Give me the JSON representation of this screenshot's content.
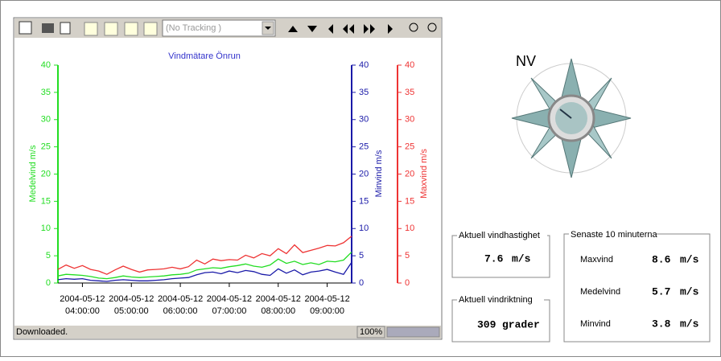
{
  "toolbar": {
    "tracking": "(No Tracking )"
  },
  "chart_data": {
    "type": "line",
    "title": "Vindmätare Önrun",
    "x": [
      "2004-05-12 03:30:00",
      "2004-05-12 03:40:00",
      "2004-05-12 03:50:00",
      "2004-05-12 04:00:00",
      "2004-05-12 04:10:00",
      "2004-05-12 04:20:00",
      "2004-05-12 04:30:00",
      "2004-05-12 04:40:00",
      "2004-05-12 04:50:00",
      "2004-05-12 05:00:00",
      "2004-05-12 05:10:00",
      "2004-05-12 05:20:00",
      "2004-05-12 05:30:00",
      "2004-05-12 05:40:00",
      "2004-05-12 05:50:00",
      "2004-05-12 06:00:00",
      "2004-05-12 06:10:00",
      "2004-05-12 06:20:00",
      "2004-05-12 06:30:00",
      "2004-05-12 06:40:00",
      "2004-05-12 06:50:00",
      "2004-05-12 07:00:00",
      "2004-05-12 07:10:00",
      "2004-05-12 07:20:00",
      "2004-05-12 07:30:00",
      "2004-05-12 07:40:00",
      "2004-05-12 07:50:00",
      "2004-05-12 08:00:00",
      "2004-05-12 08:10:00",
      "2004-05-12 08:20:00",
      "2004-05-12 08:30:00",
      "2004-05-12 08:40:00",
      "2004-05-12 08:50:00",
      "2004-05-12 09:00:00",
      "2004-05-12 09:10:00",
      "2004-05-12 09:20:00",
      "2004-05-12 09:30:00"
    ],
    "xlim": [
      "2004-05-12 03:30:00",
      "2004-05-12 09:30:00"
    ],
    "xticks": [
      {
        "value": "2004-05-12 04:00:00",
        "label": "2004-05-12 04:00:00"
      },
      {
        "value": "2004-05-12 05:00:00",
        "label": "2004-05-12 05:00:00"
      },
      {
        "value": "2004-05-12 06:00:00",
        "label": "2004-05-12 06:00:00"
      },
      {
        "value": "2004-05-12 07:00:00",
        "label": "2004-05-12 07:00:00"
      },
      {
        "value": "2004-05-12 08:00:00",
        "label": "2004-05-12 08:00:00"
      },
      {
        "value": "2004-05-12 09:00:00",
        "label": "2004-05-12 09:00:00"
      }
    ],
    "ylabel": "Medelvind m/s",
    "y2label": "Minvind m/s",
    "y3label": "Maxvind m/s",
    "ylim": [
      0,
      40
    ],
    "yticks": [
      0,
      5,
      10,
      15,
      20,
      25,
      30,
      35,
      40
    ],
    "y2lim": [
      0,
      40
    ],
    "y2ticks": [
      0,
      5,
      10,
      15,
      20,
      25,
      30,
      35,
      40
    ],
    "y3lim": [
      0,
      40
    ],
    "y3ticks": [
      0,
      5,
      10,
      15,
      20,
      25,
      30,
      35,
      40
    ],
    "series": [
      {
        "name": "Medelvind",
        "color": "#22dd22",
        "axis": "y",
        "values": [
          1.3,
          1.6,
          1.5,
          1.4,
          1.2,
          0.9,
          0.8,
          1.0,
          1.3,
          1.1,
          1.0,
          1.1,
          1.2,
          1.3,
          1.5,
          1.6,
          1.8,
          2.4,
          2.6,
          2.8,
          2.7,
          3.0,
          3.2,
          3.5,
          3.1,
          2.9,
          3.3,
          4.4,
          3.6,
          4.0,
          3.4,
          3.7,
          3.4,
          4.0,
          3.9,
          4.2,
          5.7
        ]
      },
      {
        "name": "Minvind",
        "color": "#1a1aa8",
        "axis": "y2",
        "values": [
          0.6,
          0.8,
          0.7,
          0.8,
          0.5,
          0.4,
          0.3,
          0.5,
          0.6,
          0.5,
          0.4,
          0.4,
          0.5,
          0.6,
          0.8,
          0.9,
          1.0,
          1.5,
          1.9,
          2.0,
          1.7,
          2.2,
          1.9,
          2.3,
          2.1,
          1.6,
          1.4,
          2.6,
          1.8,
          2.4,
          1.5,
          2.0,
          2.2,
          2.5,
          2.0,
          1.6,
          3.8
        ]
      },
      {
        "name": "Maxvind",
        "color": "#ee3333",
        "axis": "y3",
        "values": [
          2.5,
          3.3,
          2.7,
          3.2,
          2.5,
          2.2,
          1.6,
          2.4,
          3.1,
          2.5,
          2.0,
          2.4,
          2.5,
          2.6,
          2.9,
          2.6,
          3.0,
          4.2,
          3.5,
          4.4,
          4.1,
          4.3,
          4.2,
          5.1,
          4.6,
          5.4,
          5.0,
          6.3,
          5.4,
          7.0,
          5.6,
          6.0,
          6.4,
          6.9,
          6.8,
          7.4,
          8.6
        ]
      }
    ]
  },
  "status": {
    "message": "Downloaded.",
    "zoom": "100%"
  },
  "compass": {
    "direction": "NV"
  },
  "speed": {
    "title": "Aktuell vindhastighet",
    "value": "7.6",
    "unit": "m/s"
  },
  "direction": {
    "title": "Aktuell vindriktning",
    "value": "309",
    "unit": "grader"
  },
  "last10": {
    "title": "Senaste 10 minuterna",
    "rows": [
      {
        "label": "Maxvind",
        "value": "8.6",
        "unit": "m/s"
      },
      {
        "label": "Medelvind",
        "value": "5.7",
        "unit": "m/s"
      },
      {
        "label": "Minvind",
        "value": "3.8",
        "unit": "m/s"
      }
    ]
  }
}
